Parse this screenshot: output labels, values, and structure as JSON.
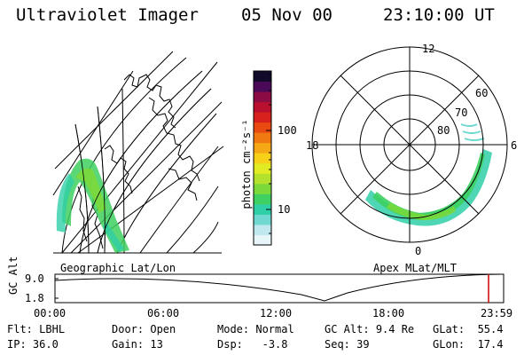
{
  "header": {
    "instrument": "Ultraviolet Imager",
    "date": "05 Nov 00",
    "time": "23:10:00 UT"
  },
  "colorbar": {
    "unit_label": "photon cm⁻²s⁻¹",
    "ticks": [
      {
        "value": 100,
        "label": "100"
      },
      {
        "value": 10,
        "label": "10"
      }
    ],
    "colors": [
      "#e8f5f8",
      "#bfe8ee",
      "#6fd8d0",
      "#2fcfa8",
      "#3ed060",
      "#7bd93a",
      "#b4e02e",
      "#e2ea24",
      "#f7d019",
      "#f5a816",
      "#f07a12",
      "#e84a12",
      "#d8201c",
      "#b8102e",
      "#8a0c44",
      "#4a0a58",
      "#120a2a"
    ]
  },
  "geo_map": {
    "caption": "Geographic Lat/Lon"
  },
  "polar_map": {
    "caption": "Apex MLat/MLT",
    "mlt_labels": {
      "top": "12",
      "left": "18",
      "right": "6",
      "bottom": "0"
    },
    "lat_labels": [
      "60",
      "70",
      "80"
    ]
  },
  "altitude_plot": {
    "ylabel": "GC Alt",
    "y_ticks": [
      "9.0",
      "1.8"
    ],
    "x_ticks": [
      "00:00",
      "06:00",
      "12:00",
      "18:00",
      "23:59"
    ],
    "current_time_marker": "23:10",
    "marker_color": "#cc0000"
  },
  "info": {
    "flt": {
      "label": "Flt:",
      "value": "LBHL"
    },
    "door": {
      "label": "Door:",
      "value": "Open"
    },
    "mode": {
      "label": "Mode:",
      "value": "Normal"
    },
    "gc_alt": {
      "label": "GC Alt:",
      "value": "9.4 Re"
    },
    "glat": {
      "label": "GLat:",
      "value": "55.4"
    },
    "ip": {
      "label": "IP:",
      "value": "36.0"
    },
    "gain": {
      "label": "Gain:",
      "value": "13"
    },
    "dsp": {
      "label": "Dsp:",
      "value": "-3.8"
    },
    "seq": {
      "label": "Seq:",
      "value": "39"
    },
    "glon": {
      "label": "GLon:",
      "value": "17.4"
    }
  }
}
